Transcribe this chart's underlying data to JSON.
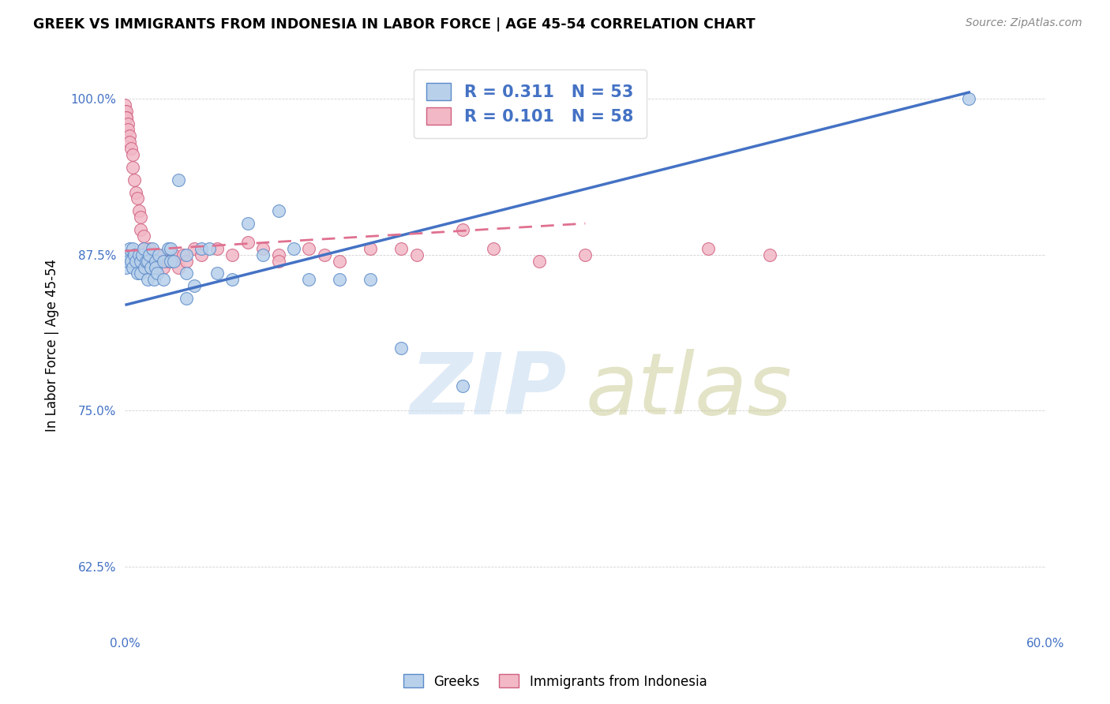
{
  "title": "GREEK VS IMMIGRANTS FROM INDONESIA IN LABOR FORCE | AGE 45-54 CORRELATION CHART",
  "source": "Source: ZipAtlas.com",
  "ylabel": "In Labor Force | Age 45-54",
  "xlim": [
    0.0,
    0.6
  ],
  "ylim": [
    0.575,
    1.03
  ],
  "xticks": [
    0.0,
    0.1,
    0.2,
    0.3,
    0.4,
    0.5,
    0.6
  ],
  "xticklabels": [
    "0.0%",
    "",
    "",
    "",
    "",
    "",
    "60.0%"
  ],
  "yticks": [
    0.625,
    0.75,
    0.875,
    1.0
  ],
  "yticklabels": [
    "62.5%",
    "75.0%",
    "87.5%",
    "100.0%"
  ],
  "blue_color": "#b8d0ea",
  "blue_edge_color": "#5b8ac9",
  "pink_color": "#f2b8c6",
  "pink_edge_color": "#d06080",
  "blue_line_color": "#4472c4",
  "pink_line_color": "#e07090",
  "blue_scatter_x": [
    0.001,
    0.001,
    0.002,
    0.003,
    0.004,
    0.005,
    0.005,
    0.006,
    0.007,
    0.008,
    0.009,
    0.01,
    0.01,
    0.011,
    0.012,
    0.013,
    0.014,
    0.015,
    0.015,
    0.016,
    0.017,
    0.018,
    0.019,
    0.02,
    0.02,
    0.021,
    0.022,
    0.025,
    0.025,
    0.028,
    0.03,
    0.03,
    0.032,
    0.035,
    0.04,
    0.04,
    0.04,
    0.045,
    0.05,
    0.055,
    0.06,
    0.07,
    0.08,
    0.09,
    0.1,
    0.11,
    0.12,
    0.14,
    0.16,
    0.18,
    0.22,
    0.32,
    0.55
  ],
  "blue_scatter_y": [
    0.875,
    0.865,
    0.87,
    0.88,
    0.87,
    0.865,
    0.88,
    0.875,
    0.87,
    0.86,
    0.875,
    0.87,
    0.86,
    0.875,
    0.88,
    0.865,
    0.87,
    0.855,
    0.87,
    0.875,
    0.865,
    0.88,
    0.855,
    0.87,
    0.865,
    0.86,
    0.875,
    0.87,
    0.855,
    0.88,
    0.88,
    0.87,
    0.87,
    0.935,
    0.86,
    0.875,
    0.84,
    0.85,
    0.88,
    0.88,
    0.86,
    0.855,
    0.9,
    0.875,
    0.91,
    0.88,
    0.855,
    0.855,
    0.855,
    0.8,
    0.77,
    1.0,
    1.0
  ],
  "pink_scatter_x": [
    0.0,
    0.0,
    0.001,
    0.001,
    0.001,
    0.002,
    0.002,
    0.003,
    0.003,
    0.004,
    0.005,
    0.005,
    0.006,
    0.007,
    0.008,
    0.009,
    0.01,
    0.01,
    0.012,
    0.012,
    0.013,
    0.014,
    0.015,
    0.015,
    0.016,
    0.017,
    0.018,
    0.02,
    0.02,
    0.022,
    0.025,
    0.025,
    0.028,
    0.03,
    0.032,
    0.035,
    0.038,
    0.04,
    0.045,
    0.05,
    0.06,
    0.07,
    0.08,
    0.09,
    0.1,
    0.1,
    0.12,
    0.13,
    0.14,
    0.16,
    0.18,
    0.19,
    0.22,
    0.24,
    0.27,
    0.3,
    0.38,
    0.42
  ],
  "pink_scatter_y": [
    0.995,
    0.99,
    0.99,
    0.985,
    0.985,
    0.98,
    0.975,
    0.97,
    0.965,
    0.96,
    0.955,
    0.945,
    0.935,
    0.925,
    0.92,
    0.91,
    0.905,
    0.895,
    0.89,
    0.88,
    0.875,
    0.875,
    0.87,
    0.865,
    0.88,
    0.875,
    0.87,
    0.865,
    0.875,
    0.87,
    0.875,
    0.865,
    0.87,
    0.87,
    0.875,
    0.865,
    0.875,
    0.87,
    0.88,
    0.875,
    0.88,
    0.875,
    0.885,
    0.88,
    0.875,
    0.87,
    0.88,
    0.875,
    0.87,
    0.88,
    0.88,
    0.875,
    0.895,
    0.88,
    0.87,
    0.875,
    0.88,
    0.875
  ],
  "blue_trend_x0": 0.001,
  "blue_trend_x1": 0.55,
  "blue_trend_y0": 0.835,
  "blue_trend_y1": 1.005,
  "pink_trend_x0": 0.0,
  "pink_trend_x1": 0.3,
  "pink_trend_y0": 0.878,
  "pink_trend_y1": 0.9
}
